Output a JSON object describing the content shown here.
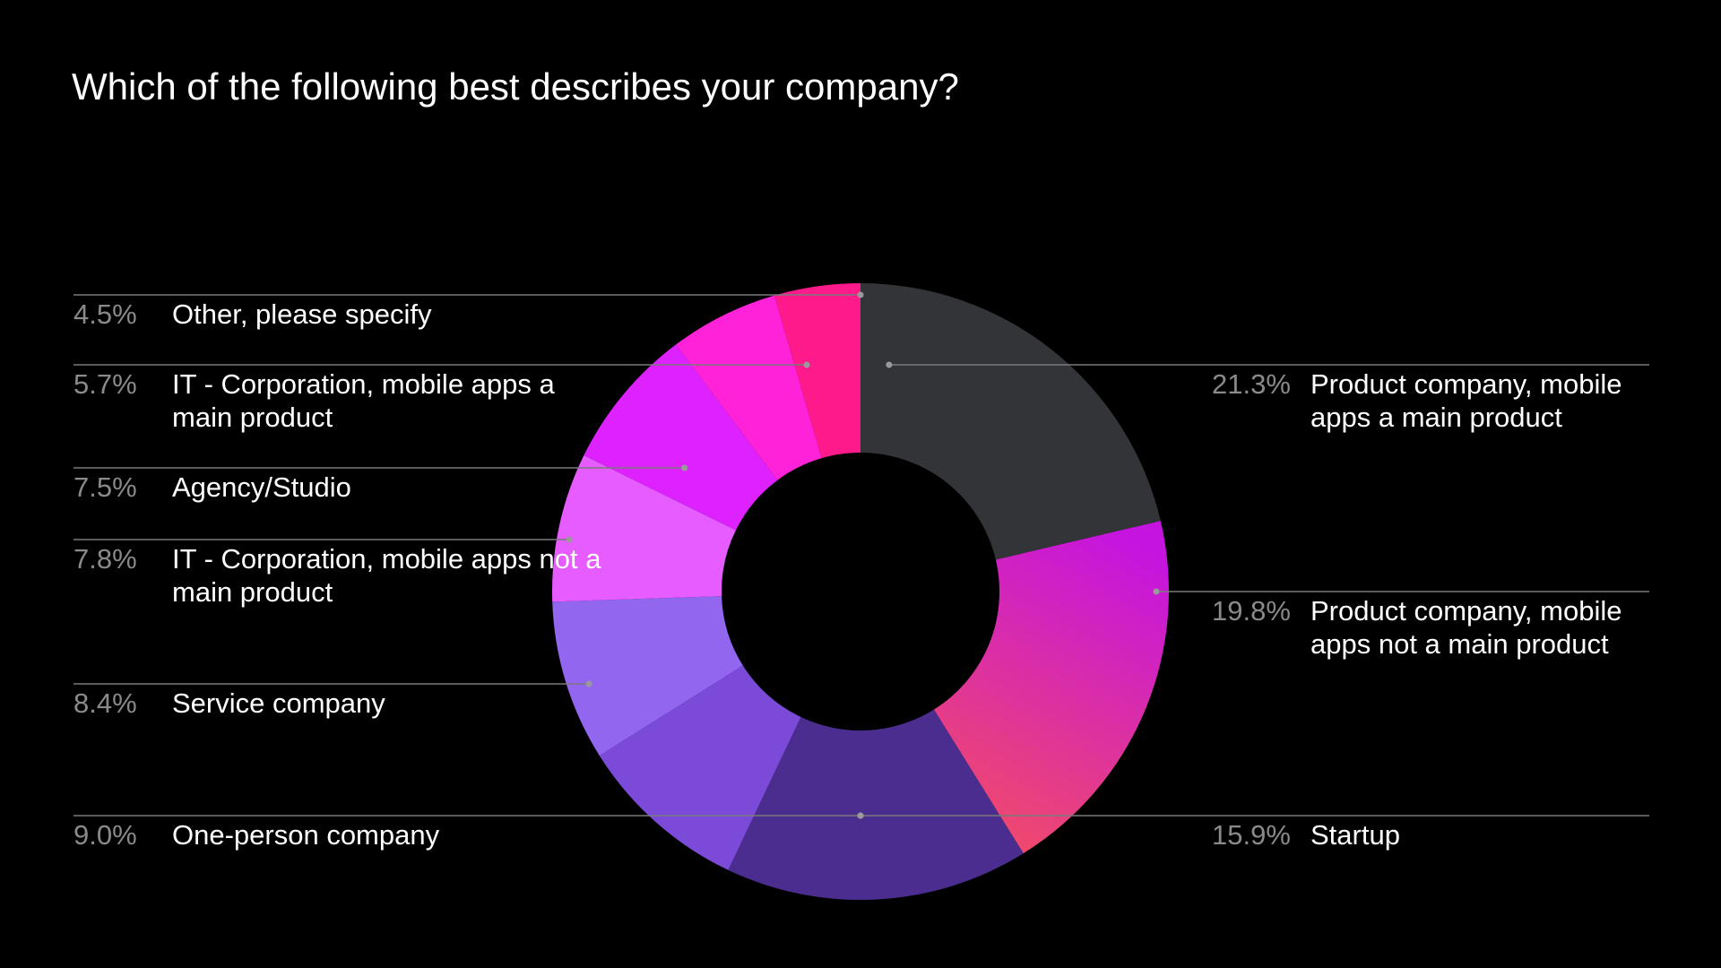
{
  "chart_data": {
    "type": "pie",
    "title": "Which of the following best describes your company?",
    "slices": [
      {
        "label": "Product company, mobile apps a main product",
        "value": 21.3,
        "value_label": "21.3%",
        "color": "#333438",
        "gradient": null
      },
      {
        "label": "Product company, mobile apps not a main product",
        "value": 19.8,
        "value_label": "19.8%",
        "color": "#cf18d8",
        "gradient": [
          "#c514e0",
          "#f04a6a"
        ]
      },
      {
        "label": "Startup",
        "value": 15.9,
        "value_label": "15.9%",
        "color": "#4a2d8e",
        "gradient": null
      },
      {
        "label": "One-person company",
        "value": 9.0,
        "value_label": "9.0%",
        "color": "#7c4ad8",
        "gradient": null
      },
      {
        "label": "Service company",
        "value": 8.4,
        "value_label": "8.4%",
        "color": "#9366f0",
        "gradient": null
      },
      {
        "label": "IT - Corporation, mobile apps not a main product",
        "value": 7.8,
        "value_label": "7.8%",
        "color": "#e65cff",
        "gradient": null
      },
      {
        "label": "Agency/Studio",
        "value": 7.5,
        "value_label": "7.5%",
        "color": "#dd22ff",
        "gradient": null
      },
      {
        "label": "IT - Corporation, mobile apps a main product",
        "value": 5.7,
        "value_label": "5.7%",
        "color": "#ff22d9",
        "gradient": null
      },
      {
        "label": "Other, please specify",
        "value": 4.5,
        "value_label": "4.5%",
        "color": "#ff1a8c",
        "gradient": null
      }
    ]
  }
}
